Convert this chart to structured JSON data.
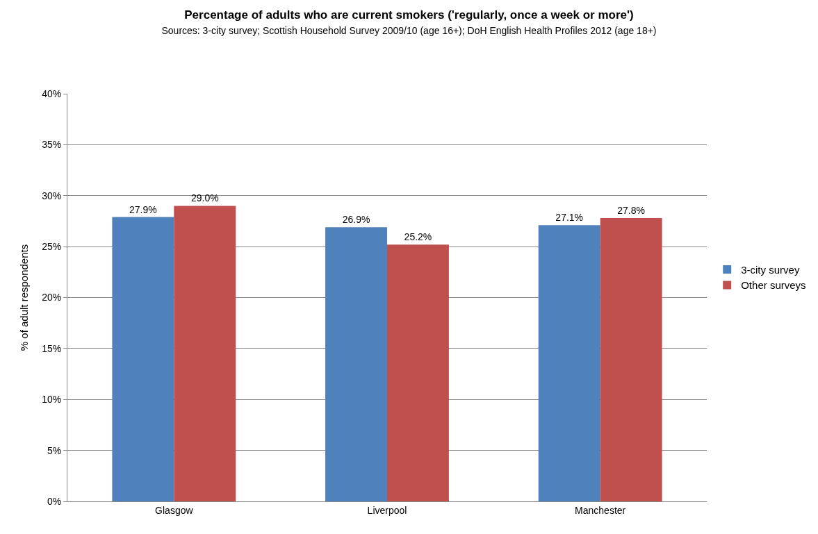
{
  "chart_data": {
    "type": "bar",
    "title": "Percentage of adults who are current smokers ('regularly, once a week or more')",
    "subtitle": "Sources: 3-city survey; Scottish Household Survey 2009/10 (age 16+); DoH English Health Profiles 2012 (age 18+)",
    "ylabel": "% of adult respondents",
    "categories": [
      "Glasgow",
      "Liverpool",
      "Manchester"
    ],
    "series": [
      {
        "name": "3-city survey",
        "color": "#4f81bd",
        "values": [
          27.9,
          26.9,
          27.1
        ],
        "value_labels": [
          "27.9%",
          "26.9%",
          "27.1%"
        ]
      },
      {
        "name": "Other surveys",
        "color": "#c0504d",
        "values": [
          29.0,
          25.2,
          27.8
        ],
        "value_labels": [
          "29.0%",
          "25.2%",
          "27.8%"
        ]
      }
    ],
    "ylim": [
      0,
      40
    ],
    "yticks": [
      {
        "value": 0,
        "label": "0%"
      },
      {
        "value": 5,
        "label": "5%"
      },
      {
        "value": 10,
        "label": "10%"
      },
      {
        "value": 15,
        "label": "15%"
      },
      {
        "value": 20,
        "label": "20%"
      },
      {
        "value": 25,
        "label": "25%"
      },
      {
        "value": 30,
        "label": "30%"
      },
      {
        "value": 35,
        "label": "35%"
      },
      {
        "value": 40,
        "label": "40%"
      }
    ],
    "grid": "y",
    "legend": "right"
  }
}
